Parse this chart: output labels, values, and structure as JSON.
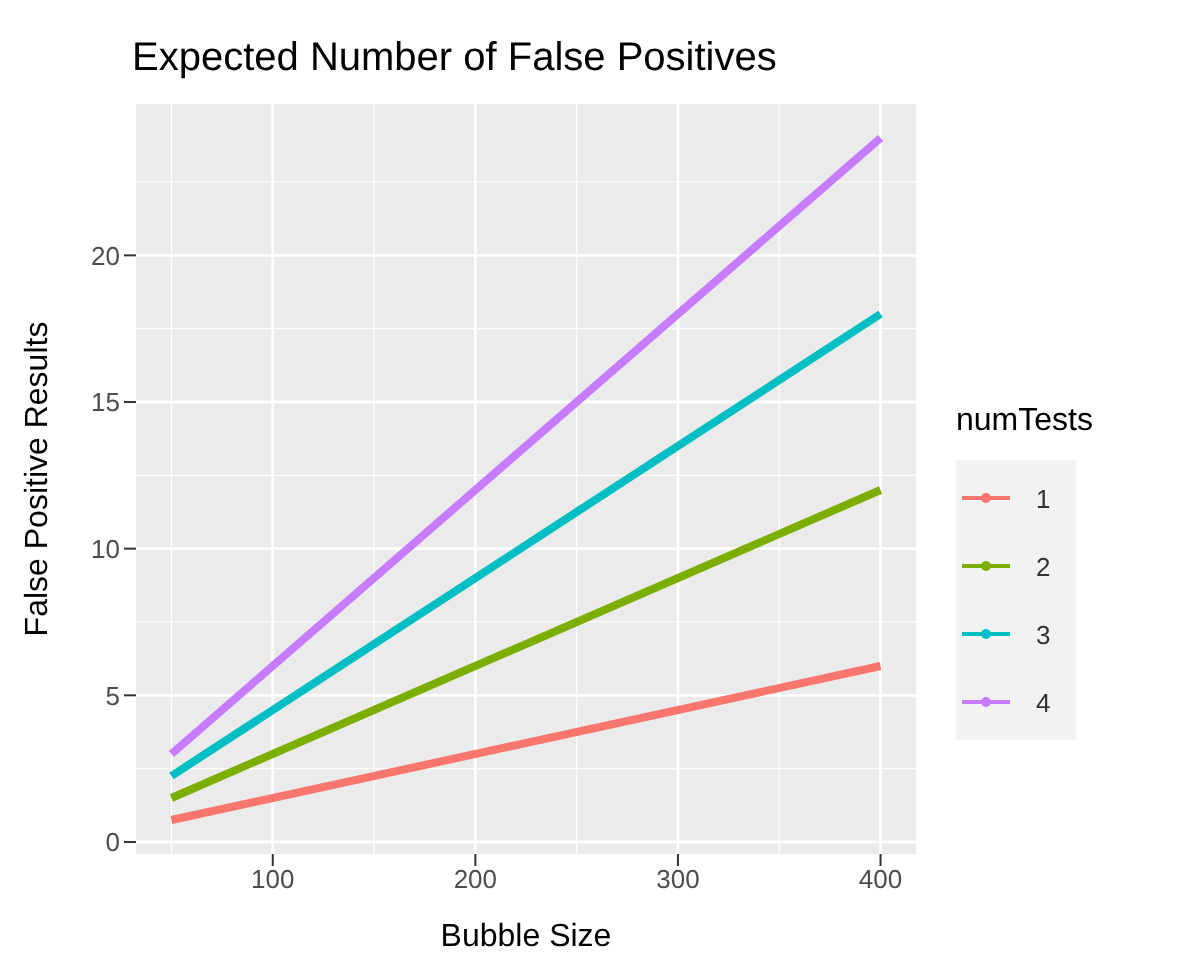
{
  "chart_data": {
    "type": "line",
    "title": "Expected Number of False Positives",
    "xlabel": "Bubble Size",
    "ylabel": "False Positive Results",
    "legend_title": "numTests",
    "x": [
      50,
      400
    ],
    "series": [
      {
        "name": "1",
        "color": "#f8766d",
        "values": [
          0.75,
          6
        ]
      },
      {
        "name": "2",
        "color": "#7cae00",
        "values": [
          1.5,
          12
        ]
      },
      {
        "name": "3",
        "color": "#00bfc4",
        "values": [
          2.25,
          18
        ]
      },
      {
        "name": "4",
        "color": "#c77cff",
        "values": [
          3,
          24
        ]
      }
    ],
    "xlim": [
      32.5,
      417.5
    ],
    "xticks": [
      100,
      200,
      300,
      400
    ],
    "ylim": [
      -0.41,
      25.16
    ],
    "yticks": [
      0,
      5,
      10,
      15,
      20
    ],
    "grid": true,
    "legend": "right",
    "marker": "none",
    "line_style": "solid"
  }
}
